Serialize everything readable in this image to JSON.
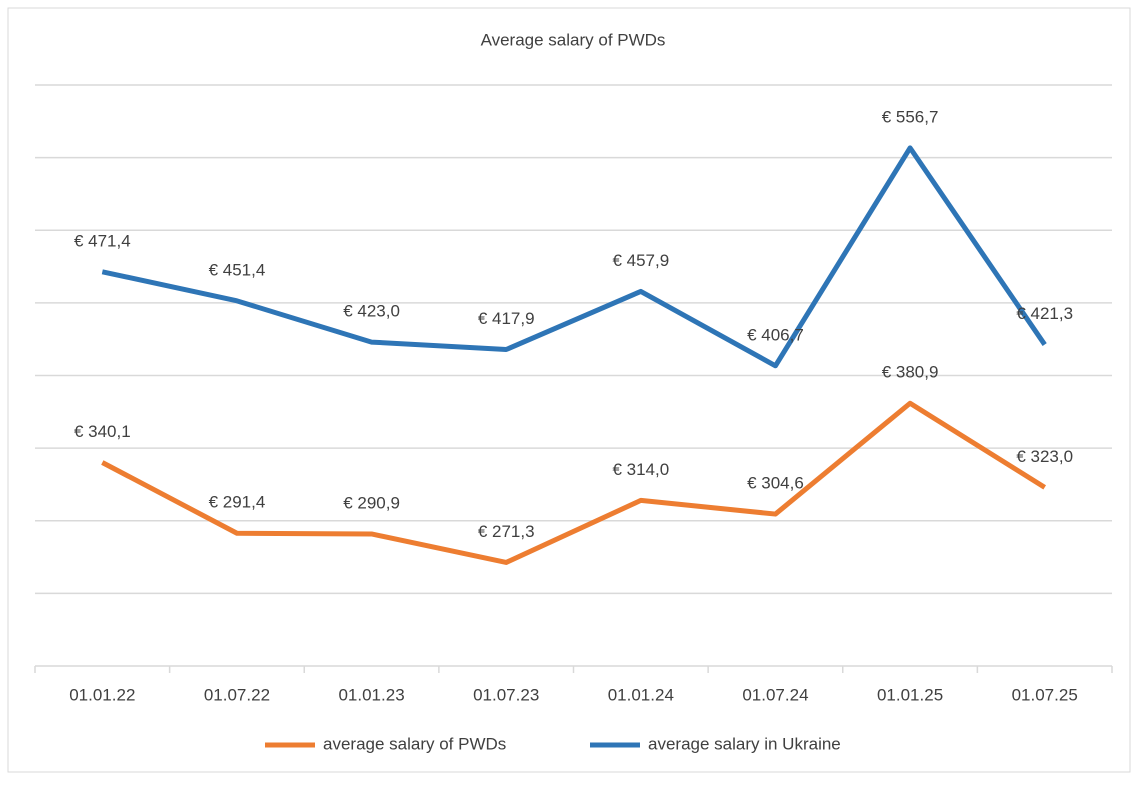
{
  "chart_data": {
    "type": "line",
    "title": "Average salary of PWDs",
    "categories": [
      "01.01.22",
      "01.07.22",
      "01.01.23",
      "01.07.23",
      "01.01.24",
      "01.07.24",
      "01.01.25",
      "01.07.25"
    ],
    "series": [
      {
        "name": "average salary of PWDs",
        "color": "#ed7d31",
        "values": [
          340.1,
          291.4,
          290.9,
          271.3,
          314.0,
          304.6,
          380.9,
          323.0
        ],
        "value_labels": [
          "€ 340,1",
          "€ 291,4",
          "€ 290,9",
          "€ 271,3",
          "€ 314,0",
          "€ 304,6",
          "€ 380,9",
          "€ 323,0"
        ]
      },
      {
        "name": "average salary in Ukraine",
        "color": "#2e75b6",
        "values": [
          471.4,
          451.4,
          423.0,
          417.9,
          457.9,
          406.7,
          556.7,
          421.3
        ],
        "value_labels": [
          "€ 471,4",
          "€ 451,4",
          "€ 423,0",
          "€ 417,9",
          "€ 457,9",
          "€ 406,7",
          "€ 556,7",
          "€ 421,3"
        ]
      }
    ],
    "ylim": [
      200,
      600
    ],
    "yticks": [
      200,
      250,
      300,
      350,
      400,
      450,
      500,
      550,
      600
    ],
    "grid": true,
    "legend": "bottom"
  }
}
